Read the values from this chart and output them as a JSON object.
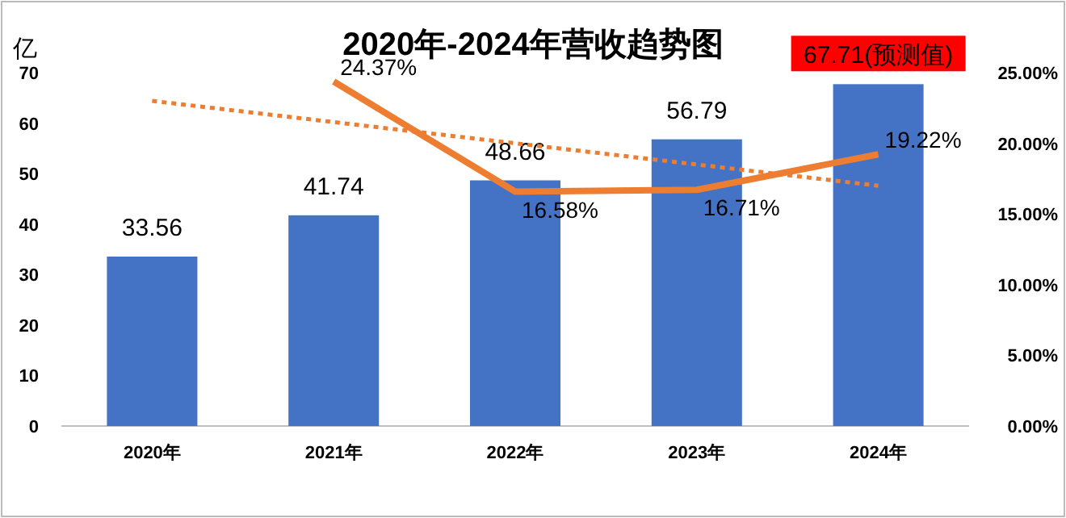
{
  "chart_data": {
    "type": "bar",
    "title": "2020年-2024年营收趋势图",
    "ylabel": "亿",
    "categories": [
      "2020年",
      "2021年",
      "2022年",
      "2023年",
      "2024年"
    ],
    "ylim": [
      0,
      70
    ],
    "yticks": [
      0,
      10,
      20,
      30,
      40,
      50,
      60,
      70
    ],
    "y2lim": [
      0,
      25
    ],
    "y2ticks": [
      {
        "value": 0,
        "label": "0.00%"
      },
      {
        "value": 5,
        "label": "5.00%"
      },
      {
        "value": 10,
        "label": "10.00%"
      },
      {
        "value": 15,
        "label": "15.00%"
      },
      {
        "value": 20,
        "label": "20.00%"
      },
      {
        "value": 25,
        "label": "25.00%"
      }
    ],
    "grid": false,
    "series": [
      {
        "color": "#4472c4",
        "values": [
          33.56,
          41.74,
          48.66,
          56.79,
          67.71
        ],
        "value_labels": [
          "33.56",
          "41.74",
          "48.66",
          "56.79",
          "67.71(预测值)"
        ]
      },
      {
        "type": "line",
        "axis": "y2",
        "color": "#ed7d31",
        "values": [
          null,
          24.37,
          16.58,
          16.71,
          19.22
        ],
        "value_labels": [
          null,
          "24.37%",
          "16.58%",
          "16.71%",
          "19.22%"
        ],
        "line_style": "solid"
      },
      {
        "type": "line",
        "axis": "y2",
        "color": "#ed7d31",
        "x": [
          "2020年",
          "2024年"
        ],
        "values": [
          23.0,
          17.0
        ],
        "line_style": "dotted"
      }
    ]
  }
}
